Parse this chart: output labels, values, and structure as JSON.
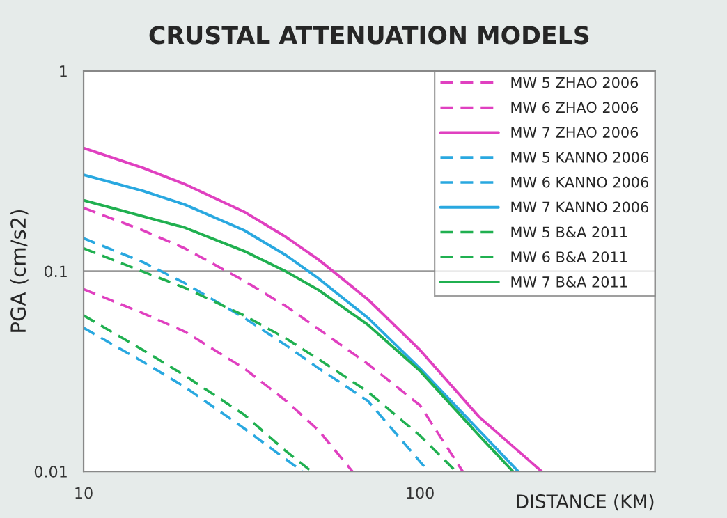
{
  "chart_data": {
    "type": "line",
    "title": "CRUSTAL ATTENUATION MODELS",
    "xlabel": "DISTANCE (KM)",
    "ylabel": "PGA (cm/s2)",
    "log": "xy",
    "xlim": [
      10,
      500
    ],
    "ylim": [
      0.01,
      1
    ],
    "xticks": [
      10,
      100
    ],
    "yticks": [
      0.01,
      0.1,
      1
    ],
    "grid": "y",
    "legend": "top right",
    "marker": "none",
    "series": [
      {
        "name": "MW 5 ZHAO 2006",
        "color": "#e040c0",
        "line_style": "dashed",
        "x": [
          10,
          15,
          20,
          30,
          40,
          50,
          63
        ],
        "values": [
          0.0813,
          0.0617,
          0.0499,
          0.0327,
          0.0225,
          0.016,
          0.01
        ]
      },
      {
        "name": "MW 6 ZHAO 2006",
        "color": "#e040c0",
        "line_style": "dashed",
        "x": [
          10,
          15,
          20,
          30,
          40,
          50,
          70,
          100,
          134
        ],
        "values": [
          0.207,
          0.16,
          0.13,
          0.0895,
          0.0668,
          0.0513,
          0.0344,
          0.0214,
          0.01
        ]
      },
      {
        "name": "MW 7 ZHAO 2006",
        "color": "#e040c0",
        "line_style": "solid",
        "x": [
          10,
          15,
          20,
          30,
          40,
          50,
          70,
          100,
          150,
          230
        ],
        "values": [
          0.412,
          0.328,
          0.272,
          0.198,
          0.148,
          0.114,
          0.0723,
          0.0404,
          0.0187,
          0.01
        ]
      },
      {
        "name": "MW 5 KANNO 2006",
        "color": "#29a8e0",
        "line_style": "dashed",
        "x": [
          10,
          15,
          20,
          30,
          44.7
        ],
        "values": [
          0.0521,
          0.0353,
          0.0264,
          0.0164,
          0.01
        ]
      },
      {
        "name": "MW 6 KANNO 2006",
        "color": "#29a8e0",
        "line_style": "dashed",
        "x": [
          10,
          15,
          20,
          30,
          40,
          50,
          70,
          106
        ],
        "values": [
          0.146,
          0.111,
          0.0871,
          0.0585,
          0.0426,
          0.0327,
          0.0225,
          0.01
        ]
      },
      {
        "name": "MW 7 KANNO 2006",
        "color": "#29a8e0",
        "line_style": "solid",
        "x": [
          10,
          15,
          20,
          30,
          40,
          50,
          70,
          100,
          150,
          196
        ],
        "values": [
          0.303,
          0.252,
          0.215,
          0.16,
          0.12,
          0.0918,
          0.0585,
          0.0327,
          0.016,
          0.01
        ]
      },
      {
        "name": "MW 5 B&A 2011",
        "color": "#20b050",
        "line_style": "dashed",
        "x": [
          10,
          15,
          20,
          30,
          40,
          47.6
        ],
        "values": [
          0.0601,
          0.0404,
          0.0301,
          0.0192,
          0.0126,
          0.01
        ]
      },
      {
        "name": "MW 6 B&A 2011",
        "color": "#20b050",
        "line_style": "dashed",
        "x": [
          10,
          15,
          20,
          30,
          40,
          50,
          70,
          100,
          128
        ],
        "values": [
          0.13,
          0.0995,
          0.0826,
          0.0601,
          0.0461,
          0.0363,
          0.025,
          0.0151,
          0.01
        ]
      },
      {
        "name": "MW 7 B&A 2011",
        "color": "#20b050",
        "line_style": "solid",
        "x": [
          10,
          15,
          20,
          30,
          40,
          50,
          70,
          100,
          150,
          189
        ],
        "values": [
          0.226,
          0.188,
          0.165,
          0.126,
          0.0995,
          0.0805,
          0.054,
          0.0318,
          0.0151,
          0.01
        ]
      }
    ]
  }
}
